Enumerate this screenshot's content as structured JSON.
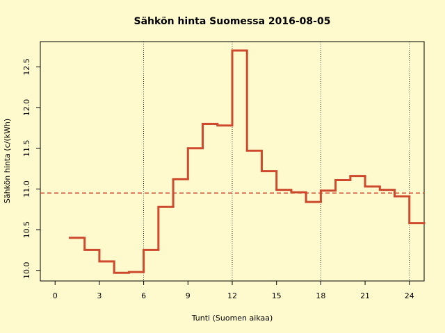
{
  "chart_data": {
    "type": "step",
    "title": "Sähkön hinta Suomessa 2016-08-05",
    "x_label": "Tunti (Suomen aikaa)",
    "y_label": "Sähkön hinta (c/(kWh)",
    "x": [
      1,
      2,
      3,
      4,
      5,
      6,
      7,
      8,
      9,
      10,
      11,
      12,
      13,
      14,
      15,
      16,
      17,
      18,
      19,
      20,
      21,
      22,
      23,
      24
    ],
    "values": [
      10.4,
      10.25,
      10.11,
      9.97,
      9.98,
      10.25,
      10.78,
      11.12,
      11.5,
      11.8,
      11.78,
      12.7,
      11.47,
      11.22,
      10.99,
      10.96,
      10.84,
      10.98,
      11.11,
      11.16,
      11.03,
      10.99,
      10.91,
      10.58
    ],
    "color": "#cd4a2e",
    "mean": 10.95,
    "vlines": [
      6,
      12,
      18,
      24
    ],
    "xlim": [
      -1,
      25
    ],
    "ylim": [
      9.87,
      12.81
    ],
    "xticks": [
      0,
      3,
      6,
      9,
      12,
      15,
      18,
      21,
      24
    ],
    "yticks": [
      {
        "value": 10,
        "label": "10.0"
      },
      10.5,
      {
        "value": 11,
        "label": "11.0"
      },
      11.5,
      {
        "value": 12,
        "label": "12.0"
      },
      12.5
    ]
  }
}
